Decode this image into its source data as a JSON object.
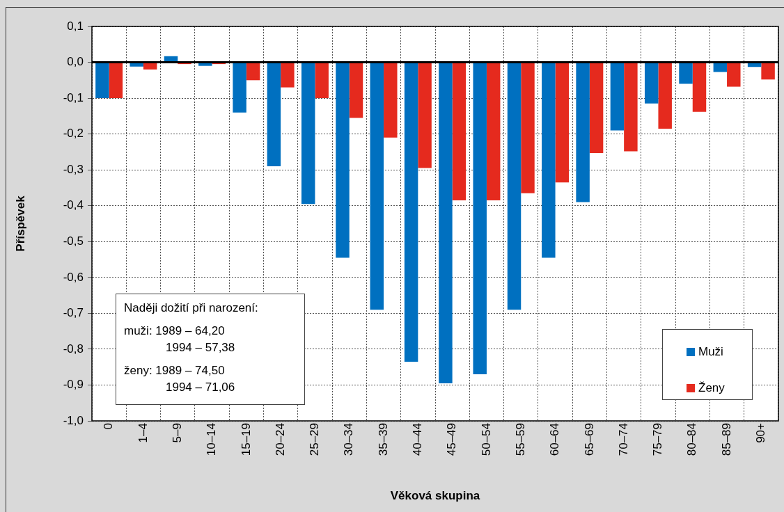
{
  "chart_data": {
    "type": "bar",
    "xlabel": "Věková skupina",
    "ylabel": "Příspěvek",
    "categories": [
      "0",
      "1–4",
      "5–9",
      "10–14",
      "15–19",
      "20–24",
      "25–29",
      "30–34",
      "35–39",
      "40–44",
      "45–49",
      "50–54",
      "55–59",
      "60–64",
      "65–69",
      "70–74",
      "75–79",
      "80–84",
      "85–89",
      "90+"
    ],
    "series": [
      {
        "name": "Muži",
        "color": "#0070c0",
        "values": [
          -0.1,
          -0.012,
          0.017,
          -0.01,
          -0.14,
          -0.29,
          -0.395,
          -0.545,
          -0.69,
          -0.835,
          -0.895,
          -0.87,
          -0.69,
          -0.545,
          -0.39,
          -0.19,
          -0.115,
          -0.06,
          -0.027,
          -0.013
        ]
      },
      {
        "name": "Ženy",
        "color": "#e52a1e",
        "values": [
          -0.1,
          -0.02,
          -0.005,
          -0.005,
          -0.05,
          -0.07,
          -0.1,
          -0.155,
          -0.21,
          -0.295,
          -0.385,
          -0.385,
          -0.365,
          -0.335,
          -0.253,
          -0.248,
          -0.185,
          -0.138,
          -0.068,
          -0.048
        ]
      }
    ],
    "ylim": [
      -1.0,
      0.1
    ],
    "yticks": [
      {
        "value": 0.1,
        "label": "0,1"
      },
      {
        "value": 0,
        "label": "0,0"
      },
      {
        "value": -0.1,
        "label": "-0,1"
      },
      {
        "value": -0.2,
        "label": "-0,2"
      },
      {
        "value": -0.3,
        "label": "-0,3"
      },
      {
        "value": -0.4,
        "label": "-0,4"
      },
      {
        "value": -0.5,
        "label": "-0,5"
      },
      {
        "value": -0.6,
        "label": "-0,6"
      },
      {
        "value": -0.7,
        "label": "-0,7"
      },
      {
        "value": -0.8,
        "label": "-0,8"
      },
      {
        "value": -0.9,
        "label": "-0,9"
      },
      {
        "value": -1.0,
        "label": "-1,0"
      }
    ],
    "grid": true,
    "legend": "bottom right",
    "annotations": [
      "Naději dožití při narození:",
      "muži: 1989 – 64,20",
      "1994 – 57,38",
      "ženy: 1989 – 74,50",
      "1994 – 71,06"
    ]
  }
}
